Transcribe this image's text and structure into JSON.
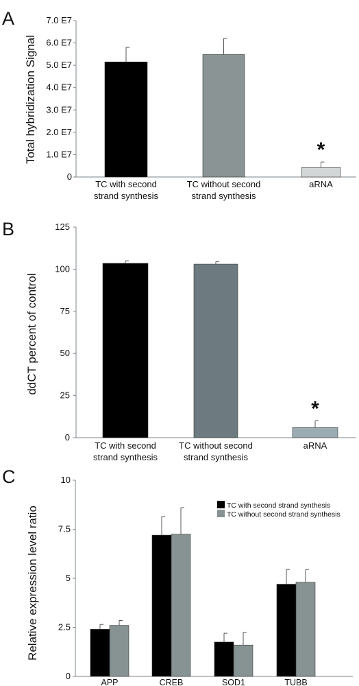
{
  "colors": {
    "black": "#000000",
    "gray_a": "#8a9494",
    "light_a": "#d2d6d6",
    "gray_b": "#6d7b80",
    "light_b": "#9aabb1",
    "gray_c": "#879292",
    "axis": "#7d858a"
  },
  "chart_data": [
    {
      "panel": "A",
      "type": "bar",
      "ylabel": "Total hybridization Signal",
      "categories": [
        [
          "TC with second",
          "strand synthesis"
        ],
        [
          "TC without second",
          "strand synthesis"
        ],
        [
          "aRNA"
        ]
      ],
      "values": [
        51500000,
        54800000,
        4200000
      ],
      "errors": [
        6500000,
        7200000,
        2500000
      ],
      "ylim": [
        0,
        70000000
      ],
      "yticks": [
        0,
        10000000,
        20000000,
        30000000,
        40000000,
        50000000,
        60000000,
        70000000
      ],
      "ytick_labels": [
        "0",
        "1.0 E7",
        "2.0 E7",
        "3.0 E7",
        "4.0 E7",
        "5.0 E7",
        "6.0 E7",
        "7.0 E7"
      ],
      "annotations": [
        {
          "text": "*",
          "category": 2
        }
      ]
    },
    {
      "panel": "B",
      "type": "bar",
      "ylabel": "ddCT percent of control",
      "categories": [
        [
          "TC with second",
          "strand synthesis"
        ],
        [
          "TC without second",
          "strand synthesis"
        ],
        [
          "aRNA"
        ]
      ],
      "values": [
        103.5,
        103,
        6
      ],
      "errors": [
        1.5,
        1.5,
        4
      ],
      "ylim": [
        0,
        125
      ],
      "yticks": [
        0,
        25,
        50,
        75,
        100,
        125
      ],
      "ytick_labels": [
        "0",
        "25",
        "50",
        "75",
        "100",
        "125"
      ],
      "annotations": [
        {
          "text": "*",
          "category": 2
        }
      ]
    },
    {
      "panel": "C",
      "type": "bar",
      "ylabel": "Relative expression level ratio",
      "categories": [
        "APP",
        "CREB",
        "SOD1",
        "TUBB"
      ],
      "series": [
        {
          "name": "TC with second strand synthesis",
          "values": [
            2.4,
            7.2,
            1.75,
            4.7
          ],
          "errors": [
            0.25,
            0.95,
            0.45,
            0.75
          ]
        },
        {
          "name": "TC without second strand synthesis",
          "values": [
            2.6,
            7.25,
            1.6,
            4.8
          ],
          "errors": [
            0.25,
            1.35,
            0.65,
            0.65
          ]
        }
      ],
      "ylim": [
        0,
        10
      ],
      "yticks": [
        0,
        2.5,
        5,
        7.5,
        10
      ],
      "ytick_labels": [
        "0",
        "2.5",
        "5",
        "7.5",
        "10"
      ],
      "legend_position": "top-right"
    }
  ]
}
